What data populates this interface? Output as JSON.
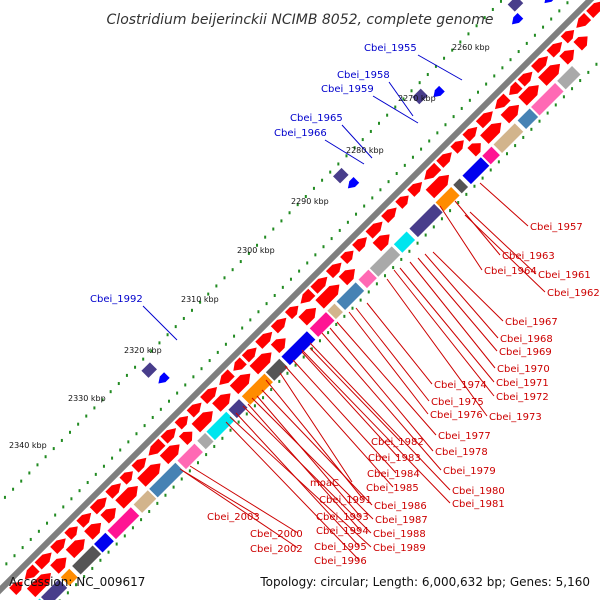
{
  "title": "Clostridium beijerinckii NCIMB 8052, complete genome",
  "footer": {
    "accession": "Accession: NC_009617",
    "info": "Topology: circular; Length: 6,000,632 bp; Genes: 5,160"
  },
  "kbp_ticks": [
    "2260 kbp",
    "2270 kbp",
    "2280 kbp",
    "2290 kbp",
    "2300 kbp",
    "2310 kbp",
    "2320 kbp",
    "2330 kbp",
    "2340 kbp"
  ],
  "outer_labels": [
    "Cbei_1955",
    "Cbei_1958",
    "Cbei_1959",
    "Cbei_1965",
    "Cbei_1966",
    "Cbei_1992"
  ],
  "inner_labels": [
    "Cbei_1957",
    "Cbei_1963",
    "Cbei_1964",
    "Cbei_1961",
    "Cbei_1962",
    "Cbei_1967",
    "Cbei_1968",
    "Cbei_1969",
    "Cbei_1970",
    "Cbei_1974",
    "Cbei_1971",
    "Cbei_1972",
    "Cbei_1975",
    "Cbei_1976",
    "Cbei_1973",
    "Cbei_1977",
    "Cbei_1982",
    "Cbei_1978",
    "Cbei_1983",
    "Cbei_1979",
    "Cbei_1984",
    "moaC",
    "Cbei_1985",
    "Cbei_1980",
    "Cbei_1991",
    "Cbei_1981",
    "Cbei_1986",
    "Cbei_1993",
    "Cbei_1987",
    "Cbei_2003",
    "Cbei_1994",
    "Cbei_1988",
    "Cbei_2000",
    "Cbei_1995",
    "Cbei_1989",
    "Cbei_2002",
    "Cbei_1996"
  ],
  "colors": {
    "backbone": "#7f7f7f",
    "forward_arrow": "#ff0000",
    "reverse_arrow": "#0000ff",
    "tick_dot": "#228b22",
    "label_blue": "#0000cc",
    "label_red": "#cc0000",
    "feature_palette": [
      "#00e5ee",
      "#4682b4",
      "#0000ee",
      "#483d8b",
      "#ff69b4",
      "#ff1493",
      "#ff8c00",
      "#a9a9a9",
      "#d2b48c",
      "#555555"
    ]
  }
}
